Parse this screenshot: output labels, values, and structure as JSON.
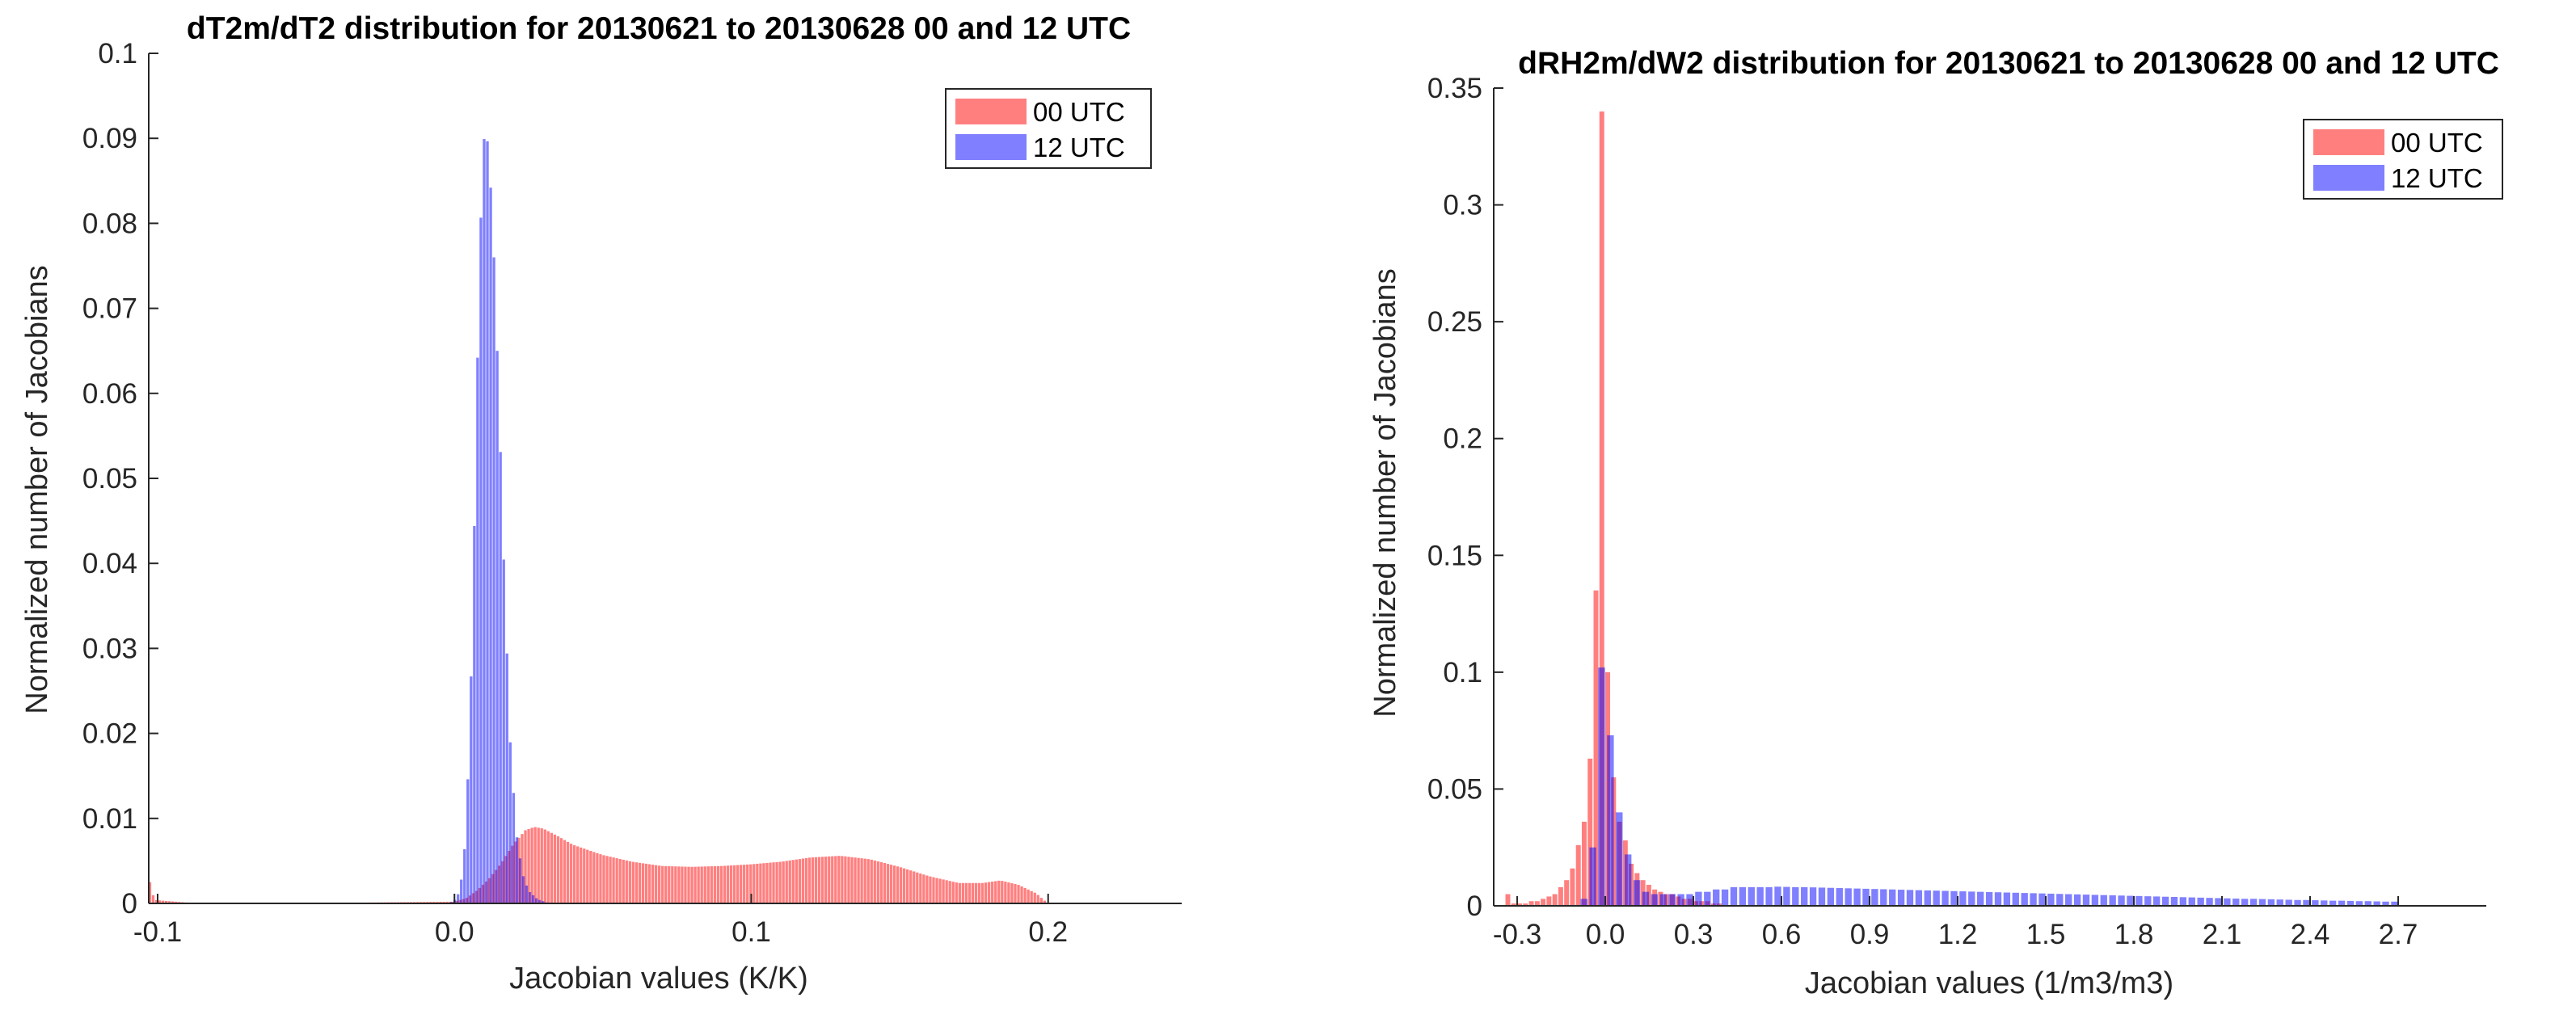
{
  "chart_data": [
    {
      "type": "bar",
      "title": "dT2m/dT2 distribution for 20130621 to 20130628 00 and 12 UTC",
      "xlabel": "Jacobian values (K/K)",
      "ylabel": "Normalized number of Jacobians",
      "xlim": [
        -0.103,
        0.245
      ],
      "ylim": [
        0,
        0.1
      ],
      "xticks": [
        -0.1,
        0.0,
        0.1,
        0.2
      ],
      "xtick_labels": [
        "-0.1",
        "0.0",
        "0.1",
        "0.2"
      ],
      "yticks": [
        0,
        0.01,
        0.02,
        0.03,
        0.04,
        0.05,
        0.06,
        0.07,
        0.08,
        0.09,
        0.1
      ],
      "ytick_labels": [
        "0",
        "0.01",
        "0.02",
        "0.03",
        "0.04",
        "0.05",
        "0.06",
        "0.07",
        "0.08",
        "0.09",
        "0.1"
      ],
      "legend_position": "top-right",
      "bar_opacity": 0.5,
      "series": [
        {
          "name": "00 UTC",
          "color": "#ff0000",
          "bin_width": 0.0011,
          "points": [
            [
              -0.1025,
              0.0025
            ],
            [
              -0.101,
              0.0004
            ],
            [
              -0.09,
              0.0001
            ],
            [
              -0.03,
              0.0001
            ],
            [
              0.0,
              0.0002
            ],
            [
              0.004,
              0.0006
            ],
            [
              0.008,
              0.0016
            ],
            [
              0.012,
              0.003
            ],
            [
              0.016,
              0.0048
            ],
            [
              0.02,
              0.007
            ],
            [
              0.024,
              0.0086
            ],
            [
              0.027,
              0.009
            ],
            [
              0.03,
              0.0088
            ],
            [
              0.035,
              0.0079
            ],
            [
              0.04,
              0.0069
            ],
            [
              0.05,
              0.0057
            ],
            [
              0.06,
              0.0049
            ],
            [
              0.07,
              0.0044
            ],
            [
              0.08,
              0.0043
            ],
            [
              0.09,
              0.0044
            ],
            [
              0.1,
              0.0046
            ],
            [
              0.11,
              0.0049
            ],
            [
              0.12,
              0.0054
            ],
            [
              0.13,
              0.0056
            ],
            [
              0.14,
              0.0052
            ],
            [
              0.15,
              0.0043
            ],
            [
              0.16,
              0.0032
            ],
            [
              0.17,
              0.0024
            ],
            [
              0.178,
              0.0024
            ],
            [
              0.184,
              0.0027
            ],
            [
              0.19,
              0.0022
            ],
            [
              0.196,
              0.0012
            ],
            [
              0.2,
              0.0
            ]
          ]
        },
        {
          "name": "12 UTC",
          "color": "#0000ff",
          "bin_width": 0.0011,
          "points": [
            [
              -0.002,
              0.0
            ],
            [
              0.0,
              0.0003
            ],
            [
              0.002,
              0.0015
            ],
            [
              0.004,
              0.008
            ],
            [
              0.006,
              0.03
            ],
            [
              0.008,
              0.066
            ],
            [
              0.0095,
              0.088
            ],
            [
              0.0105,
              0.0912
            ],
            [
              0.0115,
              0.089
            ],
            [
              0.013,
              0.08
            ],
            [
              0.015,
              0.06
            ],
            [
              0.017,
              0.037
            ],
            [
              0.019,
              0.018
            ],
            [
              0.021,
              0.008
            ],
            [
              0.023,
              0.0035
            ],
            [
              0.025,
              0.0015
            ],
            [
              0.028,
              0.0005
            ],
            [
              0.032,
              0.0
            ]
          ]
        }
      ]
    },
    {
      "type": "bar",
      "title": "dRH2m/dW2 distribution for 20130621 to 20130628 00 and 12 UTC",
      "xlabel": "Jacobian values (1/m3/m3)",
      "ylabel": "Normalized number of Jacobians",
      "xlim": [
        -0.38,
        3.0
      ],
      "ylim": [
        0,
        0.35
      ],
      "xticks": [
        -0.3,
        0.0,
        0.3,
        0.6,
        0.9,
        1.2,
        1.5,
        1.8,
        2.1,
        2.4,
        2.7
      ],
      "xtick_labels": [
        "-0.3",
        "0.0",
        "0.3",
        "0.6",
        "0.9",
        "1.2",
        "1.5",
        "1.8",
        "2.1",
        "2.4",
        "2.7"
      ],
      "yticks": [
        0,
        0.05,
        0.1,
        0.15,
        0.2,
        0.25,
        0.3,
        0.35
      ],
      "ytick_labels": [
        "0",
        "0.05",
        "0.1",
        "0.15",
        "0.2",
        "0.25",
        "0.3",
        "0.35"
      ],
      "legend_position": "top-right",
      "bar_opacity": 0.5,
      "series": [
        {
          "name": "00 UTC",
          "color": "#ff0000",
          "bin_width": 0.02,
          "bins": [
            [
              -0.33,
              0.005
            ],
            [
              -0.31,
              0.001
            ],
            [
              -0.29,
              0.001
            ],
            [
              -0.27,
              0.001
            ],
            [
              -0.25,
              0.002
            ],
            [
              -0.23,
              0.002
            ],
            [
              -0.21,
              0.003
            ],
            [
              -0.19,
              0.004
            ],
            [
              -0.17,
              0.005
            ],
            [
              -0.15,
              0.008
            ],
            [
              -0.13,
              0.011
            ],
            [
              -0.11,
              0.016
            ],
            [
              -0.09,
              0.026
            ],
            [
              -0.07,
              0.036
            ],
            [
              -0.05,
              0.063
            ],
            [
              -0.03,
              0.135
            ],
            [
              -0.01,
              0.34
            ],
            [
              0.01,
              0.1
            ],
            [
              0.03,
              0.055
            ],
            [
              0.05,
              0.036
            ],
            [
              0.07,
              0.028
            ],
            [
              0.09,
              0.018
            ],
            [
              0.11,
              0.014
            ],
            [
              0.13,
              0.011
            ],
            [
              0.15,
              0.009
            ],
            [
              0.17,
              0.007
            ],
            [
              0.19,
              0.006
            ],
            [
              0.21,
              0.005
            ],
            [
              0.23,
              0.005
            ],
            [
              0.25,
              0.004
            ],
            [
              0.27,
              0.003
            ],
            [
              0.29,
              0.003
            ],
            [
              0.31,
              0.002
            ],
            [
              0.33,
              0.002
            ],
            [
              0.35,
              0.002
            ],
            [
              0.37,
              0.001
            ],
            [
              0.39,
              0.001
            ]
          ]
        },
        {
          "name": "12 UTC",
          "color": "#0000ff",
          "bin_width": 0.028,
          "bins": [
            [
              -0.07,
              0.003
            ],
            [
              -0.04,
              0.025
            ],
            [
              -0.01,
              0.102
            ],
            [
              0.02,
              0.073
            ],
            [
              0.05,
              0.04
            ],
            [
              0.08,
              0.022
            ],
            [
              0.11,
              0.011
            ],
            [
              0.14,
              0.006
            ],
            [
              0.17,
              0.005
            ],
            [
              0.2,
              0.005
            ],
            [
              0.23,
              0.005
            ],
            [
              0.26,
              0.005
            ],
            [
              0.29,
              0.005
            ],
            [
              0.32,
              0.006
            ],
            [
              0.35,
              0.006
            ],
            [
              0.38,
              0.007
            ],
            [
              0.41,
              0.007
            ],
            [
              0.44,
              0.008
            ],
            [
              0.47,
              0.008
            ],
            [
              0.5,
              0.008
            ],
            [
              0.53,
              0.008
            ],
            [
              0.56,
              0.008
            ],
            [
              0.59,
              0.0082
            ],
            [
              0.62,
              0.0081
            ],
            [
              0.65,
              0.008
            ],
            [
              0.68,
              0.008
            ],
            [
              0.71,
              0.0079
            ],
            [
              0.74,
              0.0078
            ],
            [
              0.77,
              0.0077
            ],
            [
              0.8,
              0.0076
            ],
            [
              0.83,
              0.0075
            ],
            [
              0.86,
              0.0074
            ],
            [
              0.89,
              0.0073
            ],
            [
              0.92,
              0.0072
            ],
            [
              0.95,
              0.0071
            ],
            [
              0.98,
              0.007
            ],
            [
              1.01,
              0.0069
            ],
            [
              1.04,
              0.0068
            ],
            [
              1.07,
              0.0067
            ],
            [
              1.1,
              0.0066
            ],
            [
              1.13,
              0.0065
            ],
            [
              1.16,
              0.0064
            ],
            [
              1.19,
              0.0063
            ],
            [
              1.22,
              0.0062
            ],
            [
              1.25,
              0.0061
            ],
            [
              1.28,
              0.006
            ],
            [
              1.31,
              0.0059
            ],
            [
              1.34,
              0.0058
            ],
            [
              1.37,
              0.0057
            ],
            [
              1.4,
              0.0056
            ],
            [
              1.43,
              0.0055
            ],
            [
              1.46,
              0.0054
            ],
            [
              1.49,
              0.0053
            ],
            [
              1.52,
              0.0052
            ],
            [
              1.55,
              0.0051
            ],
            [
              1.58,
              0.005
            ],
            [
              1.61,
              0.0049
            ],
            [
              1.64,
              0.0048
            ],
            [
              1.67,
              0.0047
            ],
            [
              1.7,
              0.0046
            ],
            [
              1.73,
              0.0045
            ],
            [
              1.76,
              0.0044
            ],
            [
              1.79,
              0.0043
            ],
            [
              1.82,
              0.0042
            ],
            [
              1.85,
              0.0041
            ],
            [
              1.88,
              0.004
            ],
            [
              1.91,
              0.0039
            ],
            [
              1.94,
              0.0038
            ],
            [
              1.97,
              0.0037
            ],
            [
              2.0,
              0.0036
            ],
            [
              2.03,
              0.0035
            ],
            [
              2.06,
              0.0034
            ],
            [
              2.09,
              0.0033
            ],
            [
              2.12,
              0.0032
            ],
            [
              2.15,
              0.0031
            ],
            [
              2.18,
              0.003
            ],
            [
              2.21,
              0.003
            ],
            [
              2.24,
              0.0029
            ],
            [
              2.27,
              0.0028
            ],
            [
              2.3,
              0.0027
            ],
            [
              2.33,
              0.0026
            ],
            [
              2.36,
              0.0025
            ],
            [
              2.39,
              0.0025
            ],
            [
              2.42,
              0.0024
            ],
            [
              2.45,
              0.0023
            ],
            [
              2.48,
              0.0022
            ],
            [
              2.51,
              0.0022
            ],
            [
              2.54,
              0.0021
            ],
            [
              2.57,
              0.002
            ],
            [
              2.6,
              0.002
            ],
            [
              2.63,
              0.0019
            ],
            [
              2.66,
              0.0018
            ],
            [
              2.69,
              0.0018
            ]
          ]
        }
      ]
    }
  ]
}
